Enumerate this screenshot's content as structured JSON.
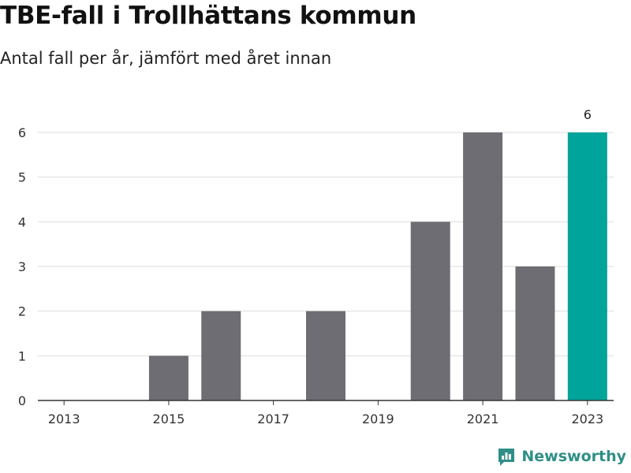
{
  "title": "TBE-fall i Trollhättans kommun",
  "subtitle": "Antal fall per år, jämfört med året innan",
  "brand": {
    "name": "Newsworthy",
    "icon": "newsworthy-logo-icon",
    "color": "#2f8f86"
  },
  "colors": {
    "default_bar": "#6e6d73",
    "highlight_bar": "#00a49a",
    "grid": "#dddddd",
    "axis": "#333333"
  },
  "chart_data": {
    "type": "bar",
    "categories": [
      "2013",
      "2014",
      "2015",
      "2016",
      "2017",
      "2018",
      "2019",
      "2020",
      "2021",
      "2022",
      "2023"
    ],
    "values": [
      0,
      0,
      1,
      2,
      0,
      2,
      0,
      4,
      6,
      3,
      6
    ],
    "x_tick_labels": [
      "2013",
      "2015",
      "2017",
      "2019",
      "2021",
      "2023"
    ],
    "y_ticks": [
      0,
      1,
      2,
      3,
      4,
      5,
      6
    ],
    "ylim": [
      0,
      6
    ],
    "highlight_category": "2023",
    "data_labels": [
      {
        "category": "2023",
        "value": "6"
      }
    ],
    "xlabel": "",
    "ylabel": "",
    "grid": "horizontal",
    "legend": "none"
  }
}
